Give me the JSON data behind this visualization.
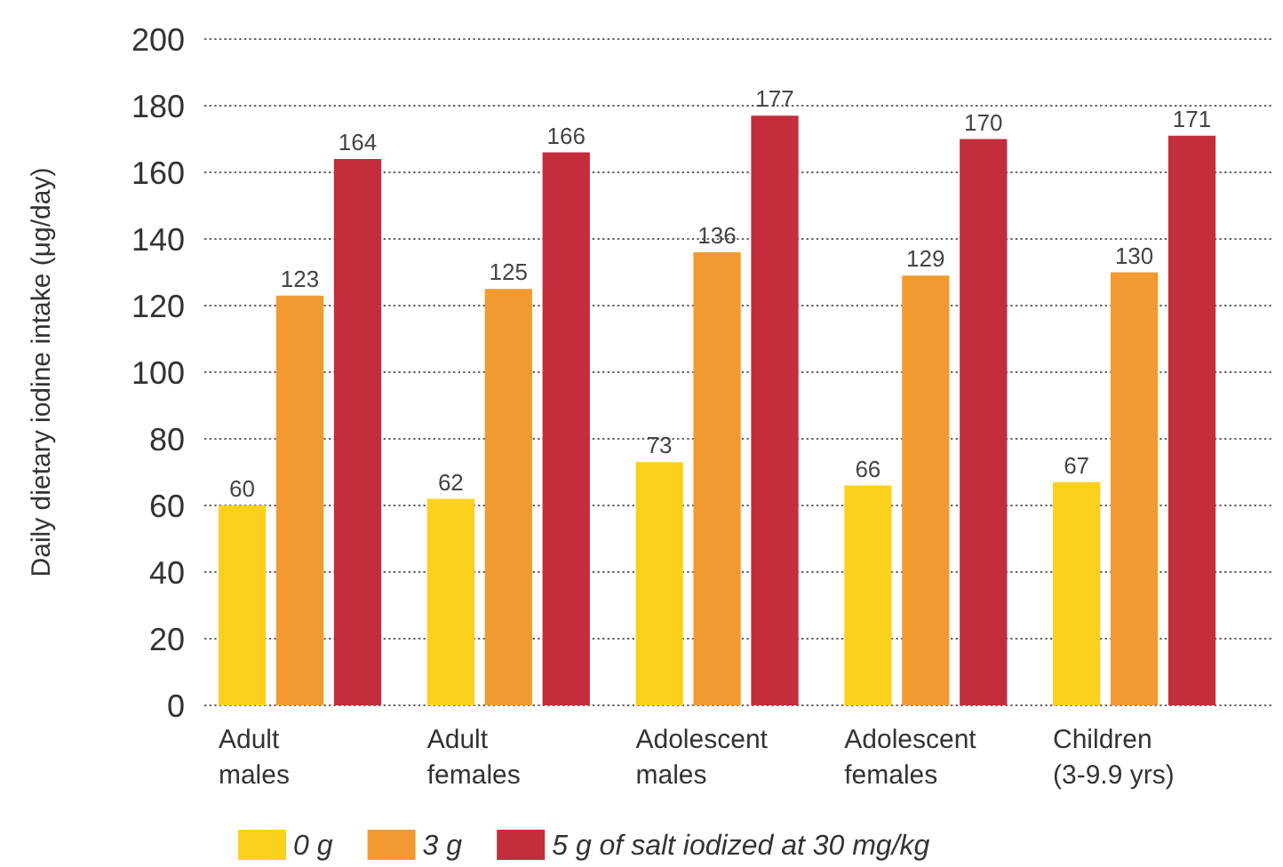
{
  "chart_data": {
    "type": "bar",
    "ylabel": "Daily dietary iodine intake (μg/day)",
    "categories": [
      "Adult\nmales",
      "Adult\nfemales",
      "Adolescent\nmales",
      "Adolescent\nfemales",
      "Children\n(3-9.9 yrs)"
    ],
    "series": [
      {
        "name": "0 g",
        "color": "#fcd11d",
        "values": [
          60,
          62,
          73,
          66,
          67
        ]
      },
      {
        "name": "3 g",
        "color": "#f29a32",
        "values": [
          123,
          125,
          136,
          129,
          130
        ]
      },
      {
        "name": "5 g of salt iodized at 30 mg/kg",
        "color": "#c42d3c",
        "values": [
          164,
          166,
          177,
          170,
          171
        ]
      }
    ],
    "ylim": [
      0,
      200
    ],
    "yticks": [
      0,
      20,
      40,
      60,
      80,
      100,
      120,
      140,
      160,
      180,
      200
    ],
    "grid": "y",
    "data_labels": true,
    "legend": "bottom"
  }
}
